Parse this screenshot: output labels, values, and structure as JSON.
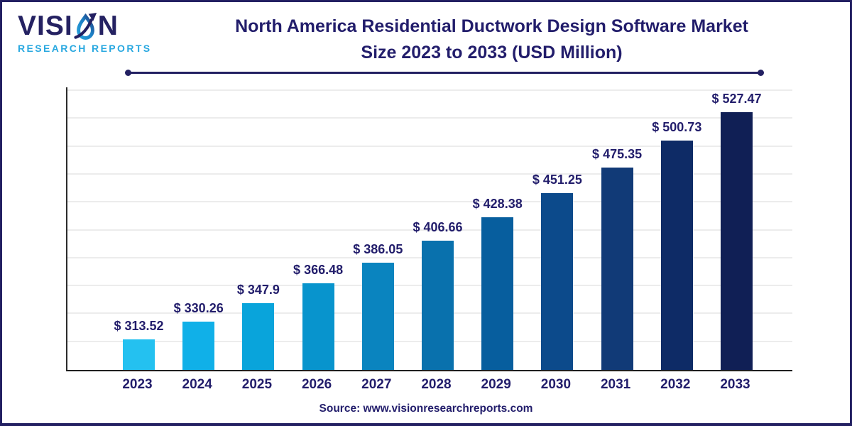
{
  "logo": {
    "word_start": "VISI",
    "word_end": "N",
    "subtitle": "RESEARCH REPORTS",
    "accent_color": "#29a8e0",
    "navy_color": "#252262"
  },
  "header": {
    "title_line1": "North America Residential Ductwork Design Software Market",
    "title_line2": "Size 2023 to 2033 (USD Million)"
  },
  "source": {
    "label": "Source: www.visionresearchreports.com"
  },
  "colors": {
    "title_text": "#221d6b",
    "frame_border": "#232062",
    "axis_line": "#1f1f1f",
    "gridline": "#ececec"
  },
  "chart_data": {
    "type": "bar",
    "title": "North America Residential Ductwork Design Software Market Size 2023 to 2033 (USD Million)",
    "xlabel": "",
    "ylabel": "",
    "unit": "USD Million",
    "grid": "horizontal",
    "legend": "none",
    "ylim": [
      285,
      552
    ],
    "categories": [
      "2023",
      "2024",
      "2025",
      "2026",
      "2027",
      "2028",
      "2029",
      "2030",
      "2031",
      "2032",
      "2033"
    ],
    "values": [
      313.52,
      330.26,
      347.9,
      366.48,
      386.05,
      406.66,
      428.38,
      451.25,
      475.35,
      500.73,
      527.47
    ],
    "value_labels": [
      "$ 313.52",
      "$ 330.26",
      "$ 347.9",
      "$ 366.48",
      "$ 386.05",
      "$ 406.66",
      "$ 428.38",
      "$ 451.25",
      "$ 475.35",
      "$ 500.73",
      "$ 527.47"
    ],
    "bar_colors": [
      "#24c1f0",
      "#10b0e8",
      "#09a4db",
      "#0894cd",
      "#0a84bf",
      "#0971ad",
      "#075e9e",
      "#0c4a8b",
      "#113a77",
      "#0e2b66",
      "#101f55"
    ]
  }
}
